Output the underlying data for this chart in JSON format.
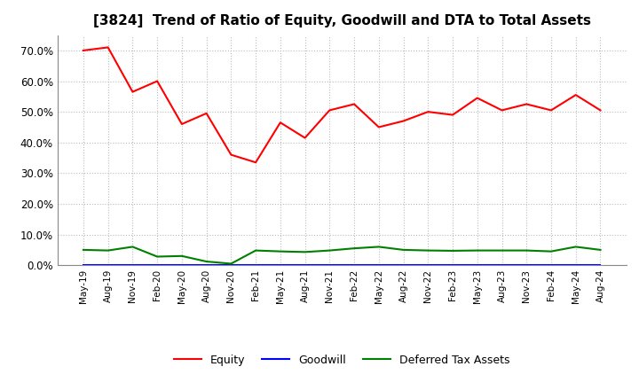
{
  "title": "[3824]  Trend of Ratio of Equity, Goodwill and DTA to Total Assets",
  "x_labels": [
    "May-19",
    "Aug-19",
    "Nov-19",
    "Feb-20",
    "May-20",
    "Aug-20",
    "Nov-20",
    "Feb-21",
    "May-21",
    "Aug-21",
    "Nov-21",
    "Feb-22",
    "May-22",
    "Aug-22",
    "Nov-22",
    "Feb-23",
    "May-23",
    "Aug-23",
    "Nov-23",
    "Feb-24",
    "May-24",
    "Aug-24"
  ],
  "equity": [
    0.7,
    0.71,
    0.565,
    0.6,
    0.46,
    0.495,
    0.36,
    0.335,
    0.465,
    0.415,
    0.505,
    0.525,
    0.45,
    0.47,
    0.5,
    0.49,
    0.545,
    0.505,
    0.525,
    0.505,
    0.555,
    0.505
  ],
  "goodwill": [
    0.0,
    0.0,
    0.0,
    0.0,
    0.0,
    0.0,
    0.0,
    0.0,
    0.0,
    0.0,
    0.0,
    0.0,
    0.0,
    0.0,
    0.0,
    0.0,
    0.0,
    0.0,
    0.0,
    0.0,
    0.0,
    0.0
  ],
  "dta": [
    0.05,
    0.048,
    0.06,
    0.028,
    0.03,
    0.012,
    0.005,
    0.048,
    0.045,
    0.043,
    0.048,
    0.055,
    0.06,
    0.05,
    0.048,
    0.047,
    0.048,
    0.048,
    0.048,
    0.045,
    0.06,
    0.05
  ],
  "equity_color": "#FF0000",
  "goodwill_color": "#0000FF",
  "dta_color": "#008000",
  "ylim": [
    0.0,
    0.75
  ],
  "yticks": [
    0.0,
    0.1,
    0.2,
    0.3,
    0.4,
    0.5,
    0.6,
    0.7
  ],
  "background_color": "#FFFFFF",
  "plot_bg_color": "#FFFFFF",
  "grid_color": "#BBBBBB",
  "title_fontsize": 11,
  "legend_labels": [
    "Equity",
    "Goodwill",
    "Deferred Tax Assets"
  ]
}
